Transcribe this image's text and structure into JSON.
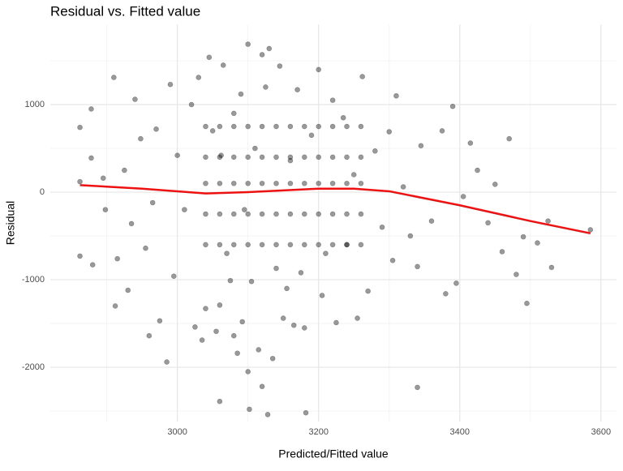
{
  "chart_data": {
    "type": "scatter",
    "title": "Residual vs. Fitted value",
    "x_label": "Predicted/Fitted value",
    "y_label": "Residual",
    "xlim": [
      2820,
      3622
    ],
    "ylim": [
      -2620,
      1917
    ],
    "xticks": [
      3000,
      3200,
      3400,
      3600
    ],
    "yticks": [
      -2000,
      -1000,
      0,
      1000
    ],
    "x_minor_ticks": [
      2900,
      3100,
      3300,
      3500
    ],
    "y_minor_ticks": [
      -2500,
      -1500,
      -500,
      500,
      1500
    ],
    "grid": true,
    "point_color": "#000000",
    "point_opacity": 0.4,
    "x": [
      2862,
      2862,
      2862,
      2878,
      2878,
      2880,
      2895,
      2898,
      2910,
      2912,
      2915,
      2925,
      2930,
      2935,
      2940,
      2948,
      2955,
      2960,
      2965,
      2970,
      2975,
      2985,
      2990,
      2995,
      3000,
      3010,
      3020,
      3025,
      3030,
      3035,
      3040,
      3045,
      3050,
      3055,
      3060,
      3060,
      3062,
      3065,
      3070,
      3075,
      3080,
      3080,
      3085,
      3090,
      3092,
      3095,
      3100,
      3100,
      3102,
      3105,
      3110,
      3115,
      3120,
      3120,
      3125,
      3128,
      3130,
      3135,
      3140,
      3145,
      3150,
      3155,
      3160,
      3165,
      3170,
      3175,
      3180,
      3182,
      3190,
      3200,
      3205,
      3210,
      3220,
      3225,
      3235,
      3240,
      3250,
      3255,
      3262,
      3270,
      3280,
      3290,
      3300,
      3305,
      3310,
      3320,
      3330,
      3340,
      3340,
      3345,
      3360,
      3375,
      3380,
      3390,
      3395,
      3405,
      3415,
      3425,
      3440,
      3450,
      3460,
      3470,
      3480,
      3490,
      3495,
      3510,
      3525,
      3530,
      3585,
      3040,
      3040,
      3040,
      3040,
      3040,
      3060,
      3060,
      3060,
      3060,
      3060,
      3080,
      3080,
      3080,
      3080,
      3080,
      3100,
      3100,
      3100,
      3100,
      3100,
      3120,
      3120,
      3120,
      3120,
      3120,
      3140,
      3140,
      3140,
      3140,
      3140,
      3160,
      3160,
      3160,
      3160,
      3160,
      3180,
      3180,
      3180,
      3180,
      3180,
      3200,
      3200,
      3200,
      3200,
      3200,
      3220,
      3220,
      3220,
      3220,
      3220,
      3240,
      3240,
      3240,
      3240,
      3240,
      3260,
      3260,
      3260,
      3260,
      3260
    ],
    "y": [
      740,
      120,
      -730,
      950,
      390,
      -830,
      160,
      -200,
      1310,
      -1300,
      -760,
      250,
      -1120,
      -360,
      1060,
      610,
      -640,
      -1640,
      -120,
      720,
      -1470,
      -1940,
      1230,
      -960,
      420,
      -200,
      1000,
      -1540,
      1310,
      -1690,
      -1330,
      1540,
      700,
      -1590,
      -2390,
      -1290,
      420,
      1450,
      -700,
      -1010,
      900,
      -1640,
      -1840,
      1120,
      -1480,
      -200,
      1690,
      -2050,
      -2480,
      -1020,
      500,
      -1800,
      1570,
      -2220,
      1200,
      -2540,
      1640,
      -1900,
      -870,
      1440,
      -1440,
      -1100,
      360,
      -1520,
      1170,
      -920,
      -1550,
      -2520,
      650,
      1400,
      -1180,
      -700,
      1050,
      -1490,
      850,
      -600,
      200,
      -1440,
      1320,
      -1130,
      470,
      -400,
      690,
      -780,
      1100,
      60,
      -500,
      -2230,
      -850,
      530,
      -330,
      700,
      -1160,
      980,
      -1040,
      -50,
      560,
      250,
      -350,
      90,
      -680,
      610,
      -940,
      -510,
      -1270,
      -580,
      -330,
      -860,
      -430,
      -600,
      -250,
      100,
      400,
      750,
      -600,
      -250,
      100,
      400,
      750,
      -600,
      -250,
      100,
      400,
      750,
      -600,
      -250,
      100,
      400,
      750,
      -600,
      -250,
      100,
      400,
      750,
      -600,
      -250,
      100,
      400,
      750,
      -600,
      -250,
      100,
      400,
      750,
      -600,
      -250,
      100,
      400,
      750,
      -600,
      -250,
      100,
      400,
      750,
      -600,
      -250,
      100,
      400,
      750,
      -600,
      -250,
      100,
      400,
      750,
      -600,
      -250,
      100,
      400,
      750
    ],
    "smooth": {
      "color": "#ee1111",
      "x": [
        2862,
        2950,
        3040,
        3100,
        3200,
        3250,
        3300,
        3400,
        3500,
        3585
      ],
      "y": [
        80,
        40,
        -15,
        0,
        40,
        40,
        10,
        -150,
        -330,
        -470
      ]
    }
  }
}
